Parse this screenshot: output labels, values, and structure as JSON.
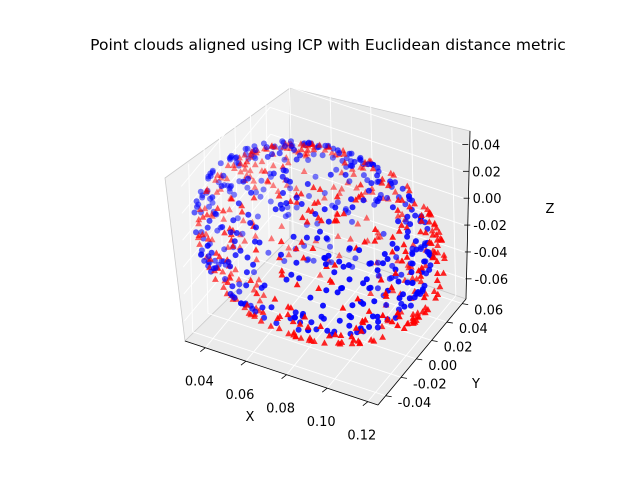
{
  "chart_data": {
    "type": "scatter",
    "projection": "3d",
    "title": "Point clouds aligned using ICP with Euclidean distance metric",
    "xlabel": "X",
    "ylabel": "Y",
    "zlabel": "Z",
    "xlim": [
      0.03,
      0.125
    ],
    "ylim": [
      -0.05,
      0.065
    ],
    "zlim": [
      -0.075,
      0.05
    ],
    "x_ticks": [
      "0.04",
      "0.06",
      "0.08",
      "0.10",
      "0.12"
    ],
    "y_ticks": [
      "-0.04",
      "-0.02",
      "0.00",
      "0.02",
      "0.04",
      "0.06"
    ],
    "z_ticks": [
      "-0.06",
      "-0.04",
      "-0.02",
      "0.00",
      "0.02",
      "0.04"
    ],
    "grid": true,
    "legend": "none",
    "series": [
      {
        "marker": "circle",
        "color": "#0000ff",
        "shape": "hemispherical shell of points",
        "center": [
          0.075,
          0.0,
          -0.01
        ],
        "radius": 0.055,
        "z_range": [
          -0.055,
          0.045
        ],
        "point_count": 420
      },
      {
        "marker": "triangle",
        "color": "#ff0000",
        "shape": "hemispherical shell of points",
        "center": [
          0.078,
          0.003,
          -0.015
        ],
        "radius": 0.057,
        "z_range": [
          -0.065,
          0.04
        ],
        "point_count": 420
      }
    ]
  }
}
